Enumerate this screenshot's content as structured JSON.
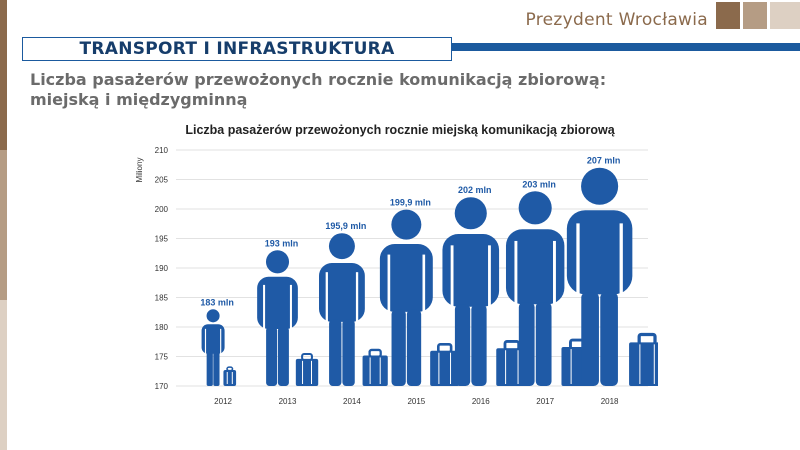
{
  "brand": {
    "name": "Prezydent Wrocławia"
  },
  "header": {
    "section_title": "TRANSPORT I INFRASTRUKTURA",
    "subtitle": "Liczba pasażerów przewożonych rocznie komunikacją zbiorową: miejską i międzygminną"
  },
  "colors": {
    "accent": "#1b5a9e",
    "brand_brown": "#8b6a4c",
    "figure_blue": "#1f5aa6"
  },
  "chart_data": {
    "type": "bar",
    "title": "Liczba pasażerów przewożonych rocznie miejską komunikacją zbiorową",
    "ylabel": "Miliony",
    "xlabel": "",
    "ylim": [
      170,
      210
    ],
    "yticks": [
      170,
      175,
      180,
      185,
      190,
      195,
      200,
      205,
      210
    ],
    "categories": [
      "2012",
      "2013",
      "2014",
      "2015",
      "2016",
      "2017",
      "2018"
    ],
    "values": [
      183,
      193,
      195.9,
      199.9,
      202,
      203,
      207
    ],
    "data_labels": [
      "183 mln",
      "193 mln",
      "195,9 mln",
      "199,9 mln",
      "202 mln",
      "203 mln",
      "207 mln"
    ],
    "grid": true,
    "mark_shape": "person-with-suitcase-icon"
  }
}
